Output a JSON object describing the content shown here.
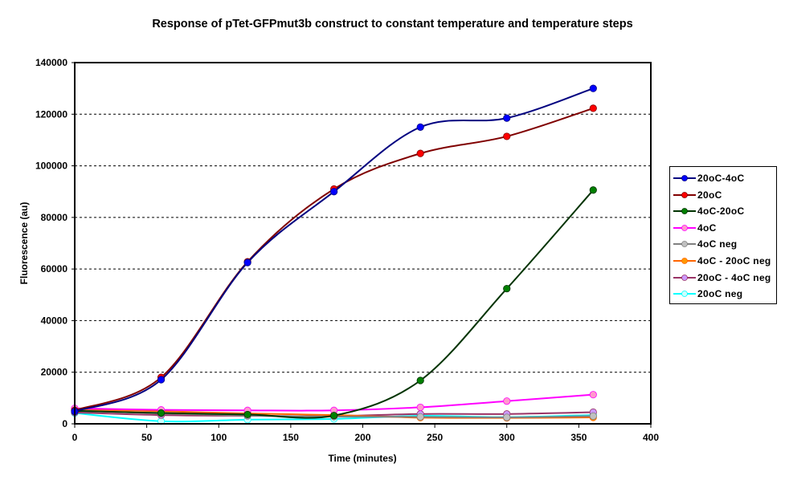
{
  "chart_data": {
    "type": "line",
    "title": "Response of pTet-GFPmut3b construct to constant temperature and temperature steps",
    "xlabel": "Time (minutes)",
    "ylabel": "Fluorescence (au)",
    "xlim": [
      0,
      400
    ],
    "ylim": [
      0,
      140000
    ],
    "x_ticks": [
      0,
      50,
      100,
      150,
      200,
      250,
      300,
      350,
      400
    ],
    "y_ticks": [
      0,
      20000,
      40000,
      60000,
      80000,
      100000,
      120000,
      140000
    ],
    "x_tick_labels": [
      "0",
      "50",
      "100",
      "150",
      "200",
      "250",
      "300",
      "350",
      "400"
    ],
    "y_tick_labels": [
      "0",
      "20000",
      "40000",
      "60000",
      "80000",
      "100000",
      "120000",
      "140000"
    ],
    "grid": "horizontal-dashed",
    "legend_position": "right",
    "smoothed": true,
    "x": [
      0,
      60,
      120,
      180,
      240,
      300,
      360
    ],
    "series": [
      {
        "name": "20oC-4oC",
        "line_color": "#000080",
        "marker_color": "#0000FF",
        "values": [
          4800,
          17100,
          62500,
          90000,
          115000,
          118500,
          130000
        ]
      },
      {
        "name": "20oC",
        "line_color": "#800000",
        "marker_color": "#FF0000",
        "values": [
          5200,
          18000,
          62800,
          91000,
          104800,
          111400,
          122300
        ]
      },
      {
        "name": "4oC-20oC",
        "line_color": "#003300",
        "marker_color": "#008000",
        "values": [
          5000,
          4200,
          3600,
          3200,
          16800,
          52400,
          90600
        ]
      },
      {
        "name": "4oC",
        "line_color": "#FF00FF",
        "marker_color": "#FF99CC",
        "values": [
          6000,
          5400,
          5200,
          5200,
          6400,
          8800,
          11300
        ]
      },
      {
        "name": "4oC neg",
        "line_color": "#808080",
        "marker_color": "#C0C0C0",
        "values": [
          5200,
          4000,
          3200,
          2800,
          2700,
          2500,
          3000
        ]
      },
      {
        "name": "4oC - 20oC neg",
        "line_color": "#FF6600",
        "marker_color": "#FF9900",
        "values": [
          5500,
          4900,
          4000,
          3400,
          2400,
          2300,
          2500
        ]
      },
      {
        "name": "20oC - 4oC neg",
        "line_color": "#993366",
        "marker_color": "#CC99FF",
        "values": [
          4400,
          3400,
          3100,
          3000,
          3800,
          3800,
          4500
        ]
      },
      {
        "name": "20oC neg",
        "line_color": "#00FFFF",
        "marker_color": "#CCFFFF",
        "values": [
          4200,
          1000,
          1600,
          1900,
          3100,
          2600,
          3400
        ]
      }
    ]
  }
}
